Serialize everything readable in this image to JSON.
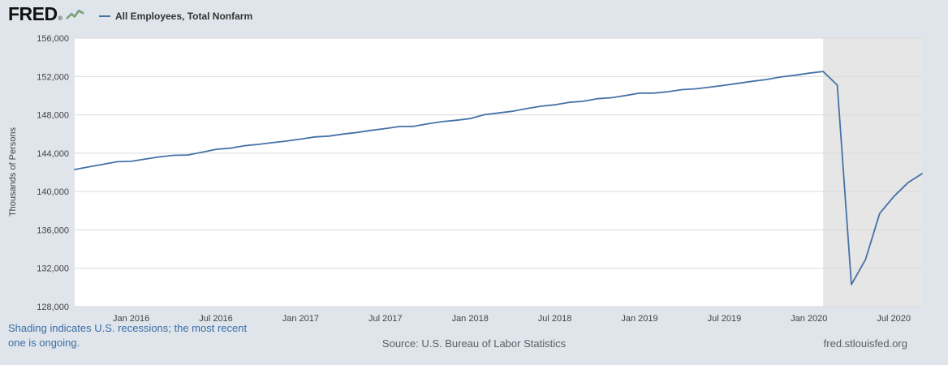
{
  "header": {
    "logo_text": "FRED",
    "logo_mark": "®",
    "logo_icon": "sparkline-chart-icon",
    "legend": {
      "series_label": "All Employees, Total Nonfarm",
      "line_color": "#4572a7"
    }
  },
  "chart_data": {
    "type": "line",
    "title": "All Employees, Total Nonfarm",
    "ylabel": "Thousands of Persons",
    "ylim": [
      128000,
      156000
    ],
    "y_ticks": [
      128000,
      132000,
      136000,
      140000,
      144000,
      148000,
      152000,
      156000
    ],
    "x_start": "2015-09",
    "x_end": "2020-09",
    "x_frequency_months": 1,
    "x_ticks": [
      {
        "label": "Jan 2016",
        "index": 4
      },
      {
        "label": "Jul 2016",
        "index": 10
      },
      {
        "label": "Jan 2017",
        "index": 16
      },
      {
        "label": "Jul 2017",
        "index": 22
      },
      {
        "label": "Jan 2018",
        "index": 28
      },
      {
        "label": "Jul 2018",
        "index": 34
      },
      {
        "label": "Jan 2019",
        "index": 40
      },
      {
        "label": "Jul 2019",
        "index": 46
      },
      {
        "label": "Jan 2020",
        "index": 52
      },
      {
        "label": "Jul 2020",
        "index": 58
      }
    ],
    "series": [
      {
        "name": "All Employees, Total Nonfarm",
        "color": "#4572a7",
        "values": [
          142297,
          142574,
          142839,
          143110,
          143150,
          143390,
          143619,
          143775,
          143807,
          144090,
          144403,
          144518,
          144774,
          144917,
          145100,
          145265,
          145465,
          145697,
          145782,
          145994,
          146163,
          146385,
          146568,
          146777,
          146799,
          147071,
          147289,
          147431,
          147607,
          148013,
          148196,
          148372,
          148650,
          148898,
          149046,
          149301,
          149409,
          149684,
          149781,
          150008,
          150264,
          150265,
          150412,
          150628,
          150713,
          150891,
          151085,
          151292,
          151500,
          151684,
          151945,
          152129,
          152343,
          152523,
          151090,
          130303,
          132912,
          137714,
          139481,
          140914,
          141865
        ]
      }
    ],
    "recession_band": {
      "start_index": 53,
      "extends_to_right_edge": true,
      "color": "#e6e6e6"
    },
    "grid": true,
    "gridline_color": "#d9d9d9",
    "plot_background": "#ffffff",
    "legend_position": "top-left"
  },
  "footer": {
    "note": "Shading indicates U.S. recessions; the most recent one is ongoing.",
    "source": "Source: U.S. Bureau of Labor Statistics",
    "site": "fred.stlouisfed.org"
  }
}
